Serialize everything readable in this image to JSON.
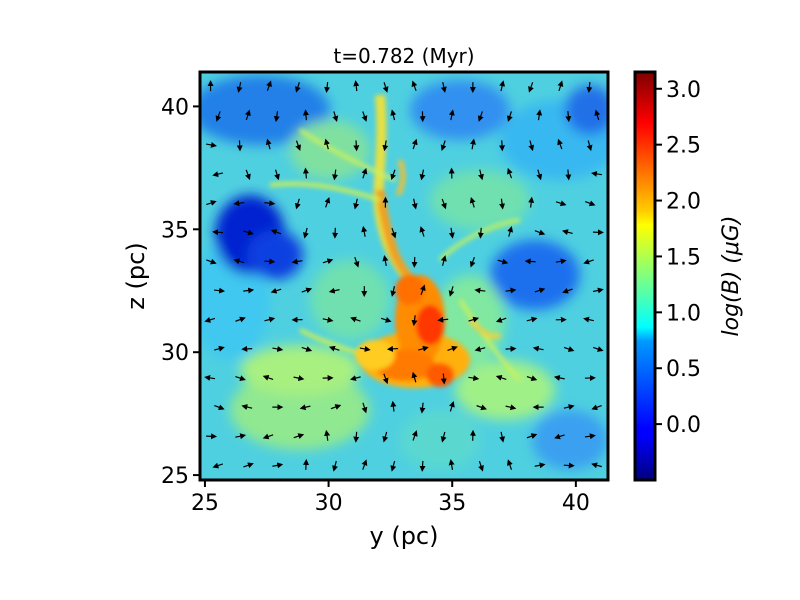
{
  "chart_data": {
    "type": "heatmap",
    "title": "t=0.782 (Myr)",
    "xlabel": "y (pc)",
    "ylabel": "z (pc)",
    "xlim": [
      24.8,
      41.3
    ],
    "ylim": [
      24.8,
      41.4
    ],
    "xticks": [
      25,
      30,
      35,
      40
    ],
    "xtick_labels": [
      "25",
      "30",
      "35",
      "40"
    ],
    "yticks": [
      25,
      30,
      35,
      40
    ],
    "ytick_labels": [
      "25",
      "30",
      "35",
      "40"
    ],
    "grid": false,
    "colorbar": {
      "label": "log(B) (μG)",
      "range": [
        -0.5,
        3.15
      ],
      "ticks": [
        0.0,
        0.5,
        1.0,
        1.5,
        2.0,
        2.5,
        3.0
      ],
      "tick_labels": [
        "0.0",
        "0.5",
        "1.0",
        "1.5",
        "2.0",
        "2.5",
        "3.0"
      ],
      "colormap": "jet"
    },
    "field_background_value": 0.95,
    "field_features": [
      {
        "feature": "high-field filament",
        "points": [
          [
            31.6,
            37.5
          ],
          [
            32.0,
            35.8
          ],
          [
            32.5,
            34.2
          ],
          [
            33.2,
            33.0
          ],
          [
            33.8,
            31.8
          ],
          [
            34.2,
            30.5
          ]
        ],
        "value": 2.3
      },
      {
        "feature": "high-field core",
        "y": 33.5,
        "z": 30.2,
        "value": 2.9
      },
      {
        "feature": "high-field region",
        "y": 32.8,
        "z": 29.6,
        "value": 2.5
      },
      {
        "feature": "low-field cavity",
        "y": 26.8,
        "z": 35.0,
        "value": -0.3
      },
      {
        "feature": "low-field cavity",
        "y": 26.5,
        "z": 40.5,
        "value": 0.1
      },
      {
        "feature": "low-field cavity",
        "y": 38.5,
        "z": 33.5,
        "value": 0.3
      },
      {
        "feature": "low-field cavity",
        "y": 40.0,
        "z": 27.0,
        "value": 0.5
      },
      {
        "feature": "low-field cavity",
        "y": 40.2,
        "z": 40.5,
        "value": 0.4
      }
    ],
    "vectors": {
      "description": "magnetic field direction arrows on a regular grid",
      "grid_columns": 14,
      "grid_rows": 14,
      "color": "#000000"
    }
  }
}
